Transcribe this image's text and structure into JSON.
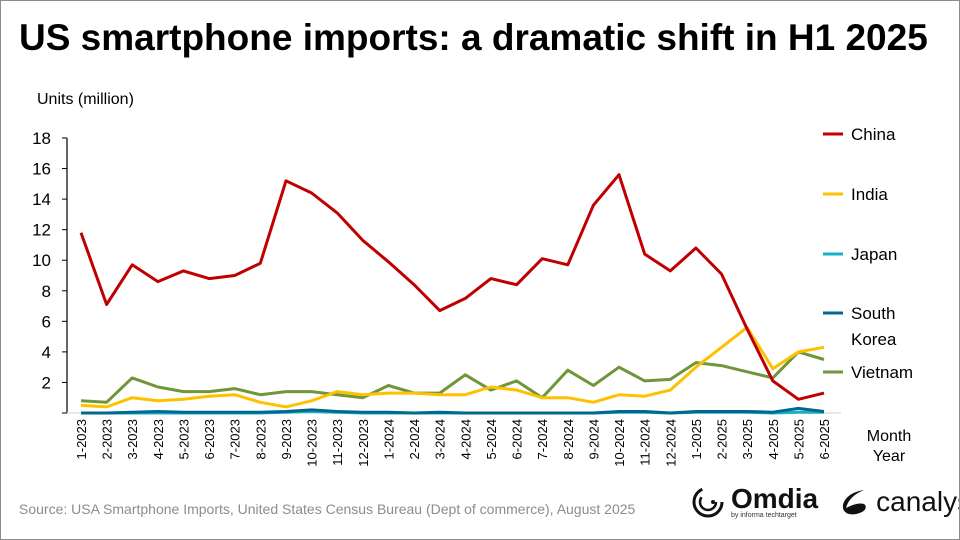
{
  "title": "US smartphone imports: a dramatic shift in H1 2025",
  "source": "Source: USA Smartphone Imports, United States Census Bureau (Dept of commerce), August 2025",
  "logos": {
    "omdia": "Omdia",
    "omdia_sub": "by informa techtarget",
    "canalys": "canalys"
  },
  "chart_data": {
    "type": "line",
    "title": "US smartphone imports: a dramatic shift in H1 2025",
    "ylabel": "Units (million)",
    "xlabel": "Month Year",
    "xlabel_lines": [
      "Month",
      "Year"
    ],
    "ylim": [
      0,
      18
    ],
    "yticks": [
      0,
      2,
      4,
      6,
      8,
      10,
      12,
      14,
      16,
      18
    ],
    "ytick_labels": [
      "",
      "2",
      "4",
      "6",
      "8",
      "10",
      "12",
      "14",
      "16",
      "18"
    ],
    "grid": false,
    "legend_placement": "right",
    "categories": [
      "1-2023",
      "2-2023",
      "3-2023",
      "4-2023",
      "5-2023",
      "6-2023",
      "7-2023",
      "8-2023",
      "9-2023",
      "10-2023",
      "11-2023",
      "12-2023",
      "1-2024",
      "2-2024",
      "3-2024",
      "4-2024",
      "5-2024",
      "6-2024",
      "7-2024",
      "8-2024",
      "9-2024",
      "10-2024",
      "11-2024",
      "12-2024",
      "1-2025",
      "2-2025",
      "3-2025",
      "4-2025",
      "5-2025",
      "6-2025"
    ],
    "series": [
      {
        "name": "China",
        "legend_lines": [
          "China"
        ],
        "color": "#C00000",
        "values": [
          11.8,
          7.1,
          9.7,
          8.6,
          9.3,
          8.8,
          9.0,
          9.8,
          15.2,
          14.4,
          13.1,
          11.3,
          9.9,
          8.4,
          6.7,
          7.5,
          8.8,
          8.4,
          10.1,
          9.7,
          13.6,
          15.6,
          10.4,
          9.3,
          10.8,
          9.1,
          5.5,
          2.1,
          0.9,
          1.3
        ]
      },
      {
        "name": "India",
        "legend_lines": [
          "India"
        ],
        "color": "#FFC000",
        "values": [
          0.5,
          0.4,
          1.0,
          0.8,
          0.9,
          1.1,
          1.2,
          0.7,
          0.4,
          0.8,
          1.4,
          1.2,
          1.3,
          1.3,
          1.2,
          1.2,
          1.7,
          1.5,
          1.0,
          1.0,
          0.7,
          1.2,
          1.1,
          1.5,
          3.0,
          4.3,
          5.6,
          2.9,
          4.0,
          4.3
        ]
      },
      {
        "name": "Japan",
        "legend_lines": [
          "Japan"
        ],
        "color": "#17B0C8",
        "values": [
          0.0,
          0.0,
          0.0,
          0.0,
          0.0,
          0.0,
          0.0,
          0.0,
          0.05,
          0.1,
          0.05,
          0.0,
          0.0,
          0.0,
          0.0,
          0.0,
          0.0,
          0.0,
          0.0,
          0.0,
          0.0,
          0.05,
          0.05,
          0.0,
          0.05,
          0.05,
          0.05,
          0.0,
          0.05,
          0.05
        ]
      },
      {
        "name": "South Korea",
        "legend_lines": [
          "South",
          "Korea"
        ],
        "color": "#006990",
        "values": [
          0.0,
          0.0,
          0.05,
          0.1,
          0.05,
          0.05,
          0.05,
          0.05,
          0.1,
          0.2,
          0.1,
          0.05,
          0.05,
          0.0,
          0.05,
          0.0,
          0.0,
          0.0,
          0.0,
          0.0,
          0.0,
          0.1,
          0.1,
          0.0,
          0.1,
          0.1,
          0.1,
          0.05,
          0.3,
          0.1
        ]
      },
      {
        "name": "Vietnam",
        "legend_lines": [
          "Vietnam"
        ],
        "color": "#70963A",
        "values": [
          0.8,
          0.7,
          2.3,
          1.7,
          1.4,
          1.4,
          1.6,
          1.2,
          1.4,
          1.4,
          1.2,
          1.0,
          1.8,
          1.3,
          1.3,
          2.5,
          1.5,
          2.1,
          1.0,
          2.8,
          1.8,
          3.0,
          2.1,
          2.2,
          3.3,
          3.1,
          2.7,
          2.3,
          4.0,
          3.5
        ]
      }
    ]
  }
}
